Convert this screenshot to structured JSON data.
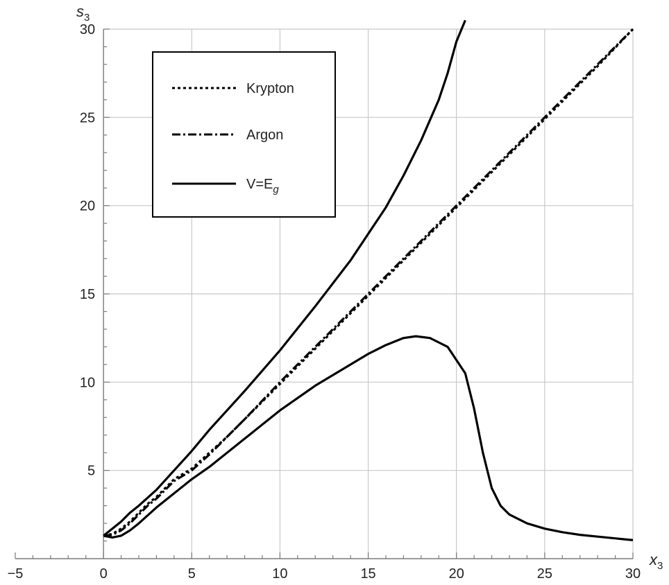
{
  "chart_data": {
    "type": "line",
    "title": "",
    "xlabel": "x",
    "xlabel_sub": "3",
    "ylabel": "s",
    "ylabel_sub": "3",
    "xlim": [
      -5,
      30
    ],
    "ylim": [
      0,
      30
    ],
    "x_ticks": [
      -5,
      0,
      5,
      10,
      15,
      20,
      25,
      30
    ],
    "x_tick_labels": [
      "−5",
      "0",
      "5",
      "10",
      "15",
      "20",
      "25",
      "30"
    ],
    "y_ticks": [
      5,
      10,
      15,
      20,
      25,
      30
    ],
    "y_tick_labels": [
      "5",
      "10",
      "15",
      "20",
      "25",
      "30"
    ],
    "grid": true,
    "legend_position": "top-left",
    "series": [
      {
        "name": "Krypton",
        "dash": "dotted",
        "color": "#000000",
        "x": [
          0,
          0.5,
          1,
          1.5,
          2,
          2.5,
          3,
          3.5,
          4,
          5,
          6,
          7,
          8,
          10,
          12,
          14,
          16,
          18,
          20,
          22,
          24,
          26,
          28,
          30
        ],
        "y": [
          1.3,
          1.4,
          1.7,
          2.1,
          2.6,
          3.1,
          3.5,
          4.0,
          4.5,
          5.1,
          6.0,
          6.9,
          7.9,
          9.9,
          11.9,
          13.9,
          15.9,
          17.9,
          19.9,
          21.9,
          23.9,
          25.9,
          27.9,
          30.0
        ]
      },
      {
        "name": "Argon",
        "dash": "dash-dot",
        "color": "#000000",
        "x": [
          0,
          0.5,
          1,
          1.5,
          2,
          2.5,
          3,
          3.5,
          4,
          5,
          6,
          7,
          8,
          10,
          12,
          14,
          16,
          18,
          20,
          22,
          24,
          26,
          28,
          30
        ],
        "y": [
          1.3,
          1.35,
          1.6,
          2.0,
          2.5,
          3.0,
          3.4,
          3.9,
          4.4,
          5.0,
          5.9,
          6.9,
          7.9,
          10.0,
          12.0,
          14.0,
          16.0,
          18.0,
          20.0,
          22.0,
          24.0,
          26.0,
          28.0,
          30.0
        ]
      },
      {
        "name": "V=E",
        "name_sub": "g",
        "dash": "solid",
        "color": "#000000",
        "x": [
          0,
          0.5,
          1,
          1.5,
          2,
          3,
          4,
          5,
          6,
          8,
          10,
          12,
          14,
          16,
          17,
          18,
          19,
          19.5,
          20,
          20.5
        ],
        "y": [
          1.3,
          1.7,
          2.1,
          2.6,
          3.0,
          3.9,
          5.0,
          6.1,
          7.3,
          9.5,
          11.8,
          14.3,
          16.9,
          19.9,
          21.7,
          23.7,
          26.0,
          27.5,
          29.3,
          30.5
        ]
      },
      {
        "name": "V=E",
        "name_sub": "g",
        "dash": "solid",
        "color": "#000000",
        "legend": false,
        "x": [
          0,
          0.5,
          1,
          1.5,
          2,
          3,
          4,
          5,
          6,
          8,
          10,
          12,
          14,
          15,
          16,
          17,
          17.7,
          18.5,
          19.5,
          20.5,
          21,
          21.5,
          22,
          22.5,
          23,
          24,
          25,
          26,
          27,
          28,
          30
        ],
        "y": [
          1.3,
          1.2,
          1.3,
          1.6,
          2.0,
          2.9,
          3.7,
          4.5,
          5.2,
          6.8,
          8.4,
          9.8,
          11.0,
          11.6,
          12.1,
          12.5,
          12.6,
          12.5,
          12.0,
          10.5,
          8.5,
          6.0,
          4.0,
          3.0,
          2.5,
          2.0,
          1.7,
          1.5,
          1.35,
          1.25,
          1.05
        ]
      }
    ]
  }
}
